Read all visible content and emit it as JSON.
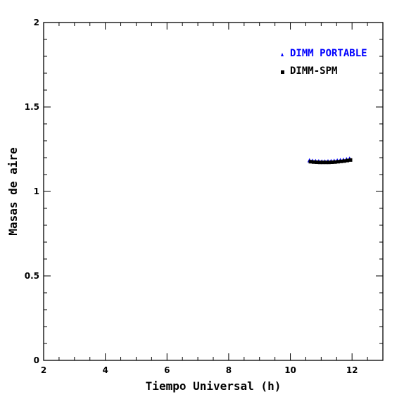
{
  "chart_data": {
    "type": "scatter",
    "title": "",
    "xlabel": "Tiempo Universal (h)",
    "ylabel": "Masas de aire",
    "xlim": [
      2,
      13
    ],
    "ylim": [
      0,
      2
    ],
    "x_ticks": [
      "2",
      "4",
      "6",
      "8",
      "10",
      "12"
    ],
    "y_ticks": [
      "0",
      "0.5",
      "1",
      "1.5",
      "2"
    ],
    "grid": false,
    "legend_position": "top-right",
    "series": [
      {
        "name": "DIMM PORTABLE",
        "marker": "triangle",
        "color": "#0000ff",
        "x": [
          10.62,
          10.72,
          10.82,
          10.92,
          11.02,
          11.12,
          11.22,
          11.32,
          11.42,
          11.52,
          11.62,
          11.72,
          11.82,
          11.92
        ],
        "y": [
          1.185,
          1.182,
          1.18,
          1.179,
          1.178,
          1.178,
          1.179,
          1.18,
          1.182,
          1.184,
          1.186,
          1.188,
          1.191,
          1.195
        ]
      },
      {
        "name": "DIMM-SPM",
        "marker": "square",
        "color": "#000000",
        "x": [
          10.65,
          10.75,
          10.85,
          10.95,
          11.05,
          11.15,
          11.25,
          11.35,
          11.45,
          11.55,
          11.65,
          11.75,
          11.85,
          11.95
        ],
        "y": [
          1.176,
          1.174,
          1.173,
          1.172,
          1.172,
          1.172,
          1.172,
          1.173,
          1.174,
          1.176,
          1.178,
          1.18,
          1.183,
          1.186
        ]
      }
    ]
  }
}
